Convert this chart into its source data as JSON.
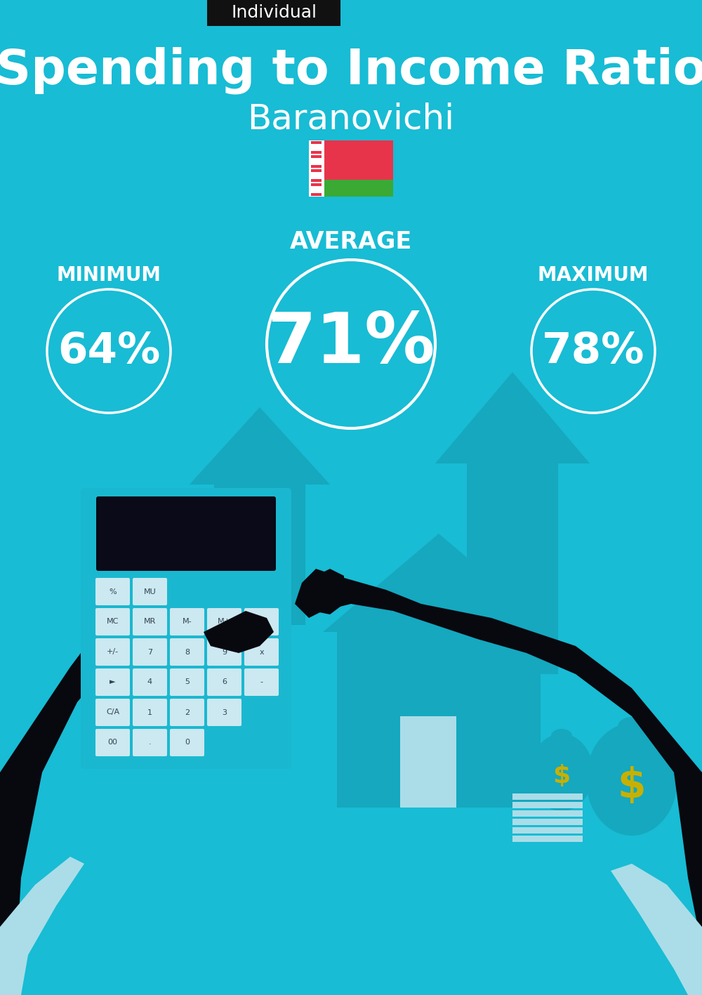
{
  "bg_color": "#18BCD4",
  "tag_bg": "#111111",
  "tag_text": "Individual",
  "tag_text_color": "#ffffff",
  "title": "Spending to Income Ratio",
  "subtitle": "Baranovichi",
  "title_color": "#ffffff",
  "subtitle_color": "#ffffff",
  "avg_label": "AVERAGE",
  "min_label": "MINIMUM",
  "max_label": "MAXIMUM",
  "avg_value": "71%",
  "min_value": "64%",
  "max_value": "78%",
  "label_color": "#ffffff",
  "value_color": "#ffffff",
  "circle_edge_color": "#ffffff",
  "flag_red": "#E8344A",
  "flag_green": "#3AAA35",
  "flag_white": "#ffffff",
  "arrow_color": "#15A8BF",
  "house_color": "#15A8BF",
  "calc_color": "#1AB8D0",
  "calc_screen": "#0a0a18",
  "calc_btn": "#cce8f0",
  "hand_color": "#08080f",
  "cuff_color": "#aadde8",
  "money_color": "#15A8BF",
  "dollar_color": "#c8b000",
  "bill_color": "#aadde8"
}
